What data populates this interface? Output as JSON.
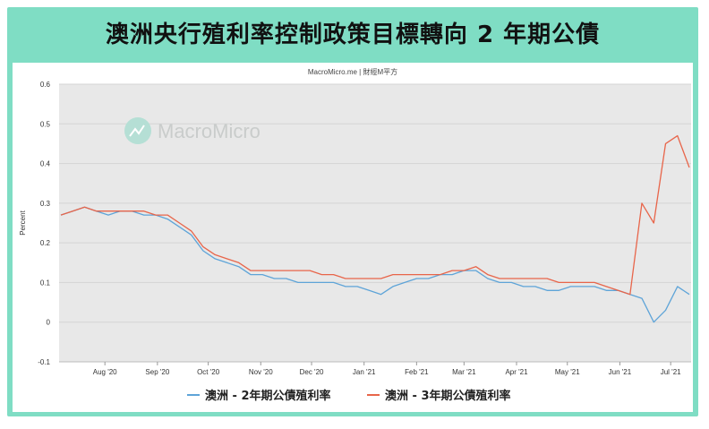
{
  "title": "澳洲央行殖利率控制政策目標轉向 2 年期公債",
  "source": "MacroMicro.me | 財經M平方",
  "watermark": "MacroMicro",
  "chart_data": {
    "type": "line",
    "ylabel": "Percent",
    "ylim": [
      -0.1,
      0.6
    ],
    "yticks": [
      "0.6",
      "0.5",
      "0.4",
      "0.3",
      "0.2",
      "0.1",
      "0",
      "-0.1"
    ],
    "xticks": [
      "Aug '20",
      "Sep '20",
      "Oct '20",
      "Nov '20",
      "Dec '20",
      "Jan '21",
      "Feb '21",
      "Mar '21",
      "Apr '21",
      "May '21",
      "Jun '21",
      "Jul '21"
    ],
    "x": [
      "2020-07-06",
      "2020-07-13",
      "2020-07-20",
      "2020-07-27",
      "2020-08-03",
      "2020-08-10",
      "2020-08-17",
      "2020-08-24",
      "2020-08-31",
      "2020-09-07",
      "2020-09-14",
      "2020-09-21",
      "2020-09-28",
      "2020-10-05",
      "2020-10-12",
      "2020-10-19",
      "2020-10-26",
      "2020-11-02",
      "2020-11-09",
      "2020-11-16",
      "2020-11-23",
      "2020-11-30",
      "2020-12-07",
      "2020-12-14",
      "2020-12-21",
      "2020-12-28",
      "2021-01-04",
      "2021-01-11",
      "2021-01-18",
      "2021-01-25",
      "2021-02-01",
      "2021-02-08",
      "2021-02-15",
      "2021-02-22",
      "2021-03-01",
      "2021-03-08",
      "2021-03-15",
      "2021-03-22",
      "2021-03-29",
      "2021-04-05",
      "2021-04-12",
      "2021-04-19",
      "2021-04-26",
      "2021-05-03",
      "2021-05-10",
      "2021-05-17",
      "2021-05-24",
      "2021-05-31",
      "2021-06-07",
      "2021-06-14",
      "2021-06-21",
      "2021-06-28",
      "2021-07-05",
      "2021-07-12"
    ],
    "series": [
      {
        "name": "澳洲 - 2年期公債殖利率",
        "color": "#5ea4d8",
        "values": [
          0.27,
          0.28,
          0.29,
          0.28,
          0.27,
          0.28,
          0.28,
          0.27,
          0.27,
          0.26,
          0.24,
          0.22,
          0.18,
          0.16,
          0.15,
          0.14,
          0.12,
          0.12,
          0.11,
          0.11,
          0.1,
          0.1,
          0.1,
          0.1,
          0.09,
          0.09,
          0.08,
          0.07,
          0.09,
          0.1,
          0.11,
          0.11,
          0.12,
          0.12,
          0.13,
          0.13,
          0.11,
          0.1,
          0.1,
          0.09,
          0.09,
          0.08,
          0.08,
          0.09,
          0.09,
          0.09,
          0.08,
          0.08,
          0.07,
          0.06,
          0.0,
          0.03,
          0.09,
          0.07
        ]
      },
      {
        "name": "澳洲 - 3年期公債殖利率",
        "color": "#e8654a",
        "values": [
          0.27,
          0.28,
          0.29,
          0.28,
          0.28,
          0.28,
          0.28,
          0.28,
          0.27,
          0.27,
          0.25,
          0.23,
          0.19,
          0.17,
          0.16,
          0.15,
          0.13,
          0.13,
          0.13,
          0.13,
          0.13,
          0.13,
          0.12,
          0.12,
          0.11,
          0.11,
          0.11,
          0.11,
          0.12,
          0.12,
          0.12,
          0.12,
          0.12,
          0.13,
          0.13,
          0.14,
          0.12,
          0.11,
          0.11,
          0.11,
          0.11,
          0.11,
          0.1,
          0.1,
          0.1,
          0.1,
          0.09,
          0.08,
          0.07,
          0.3,
          0.25,
          0.45,
          0.47,
          0.39
        ]
      }
    ],
    "legend": "bottom",
    "grid": true
  }
}
